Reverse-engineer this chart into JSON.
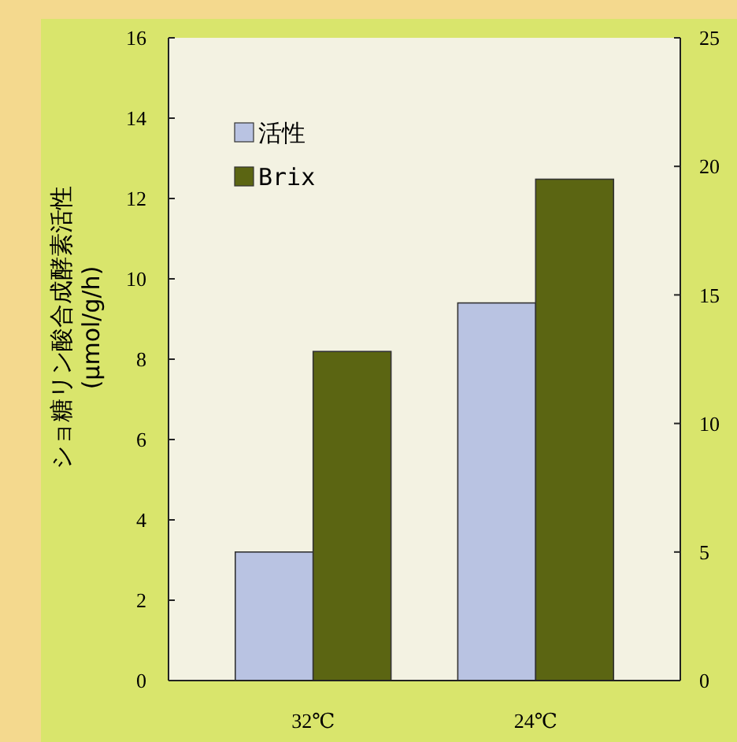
{
  "chart_data": {
    "type": "bar",
    "ylabel": "ショ糖リン酸合成酵素活性\n(μmol/g/h)",
    "categories": [
      "32℃",
      "24℃"
    ],
    "series": [
      {
        "name": "活性",
        "color": "#b9c3e2",
        "values": [
          3.2,
          9.4
        ]
      },
      {
        "name": "Brix",
        "color": "#5b6512",
        "values": [
          12.8,
          19.5
        ],
        "axis": "y2"
      }
    ],
    "ylim": [
      0,
      16
    ],
    "yticks": [
      0,
      2,
      4,
      6,
      8,
      10,
      12,
      14,
      16
    ],
    "y2lim": [
      0,
      25
    ],
    "y2ticks": [
      0,
      5,
      10,
      15,
      20,
      25
    ],
    "legend": "top left"
  }
}
